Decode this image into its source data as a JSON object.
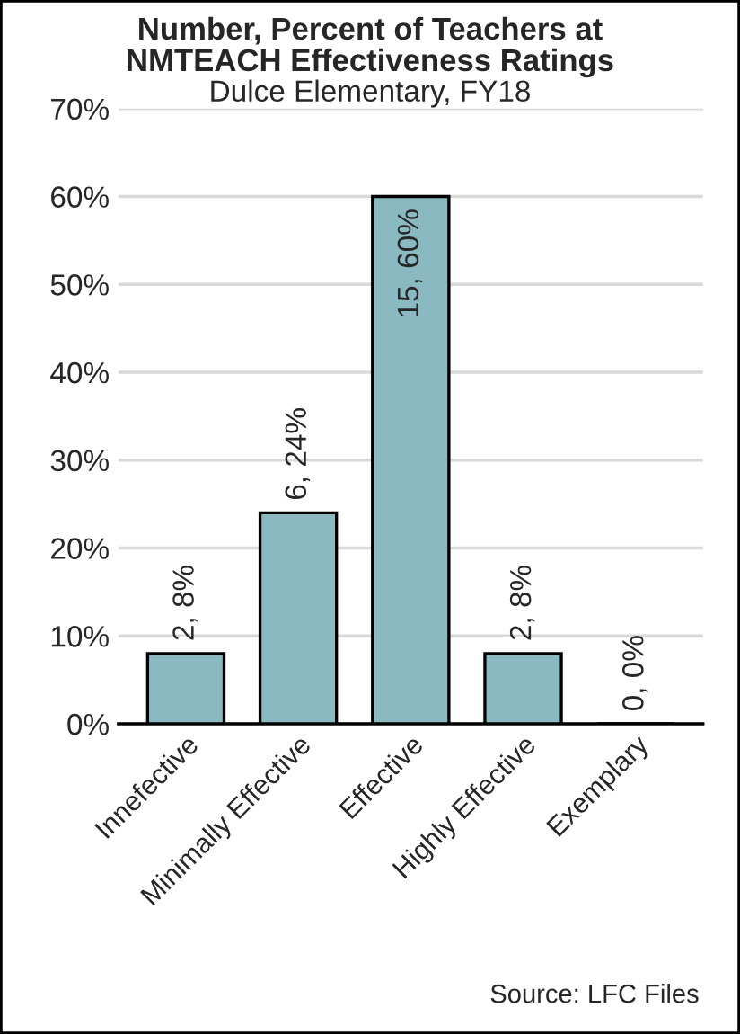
{
  "chart_data": {
    "type": "bar",
    "title": "Number, Percent of Teachers at\nNMTEACH Effectiveness Ratings",
    "subtitle": "Dulce Elementary, FY18",
    "categories": [
      "Innefective",
      "Minimally Effective",
      "Effective",
      "Highly Effective",
      "Exemplary"
    ],
    "values": [
      8,
      24,
      60,
      8,
      0
    ],
    "value_labels": [
      "2, 8%",
      "6, 24%",
      "15, 60%",
      "2, 8%",
      "0, 0%"
    ],
    "color": "#8ab9c1",
    "ylim": [
      0,
      70
    ],
    "yticks": [
      {
        "value": 0,
        "label": "0%"
      },
      {
        "value": 10,
        "label": "10%"
      },
      {
        "value": 20,
        "label": "20%"
      },
      {
        "value": 30,
        "label": "30%"
      },
      {
        "value": 40,
        "label": "40%"
      },
      {
        "value": 50,
        "label": "50%"
      },
      {
        "value": 60,
        "label": "60%"
      },
      {
        "value": 70,
        "label": "70%"
      }
    ],
    "grid": "y",
    "annotations": [
      "Source: LFC Files"
    ]
  }
}
